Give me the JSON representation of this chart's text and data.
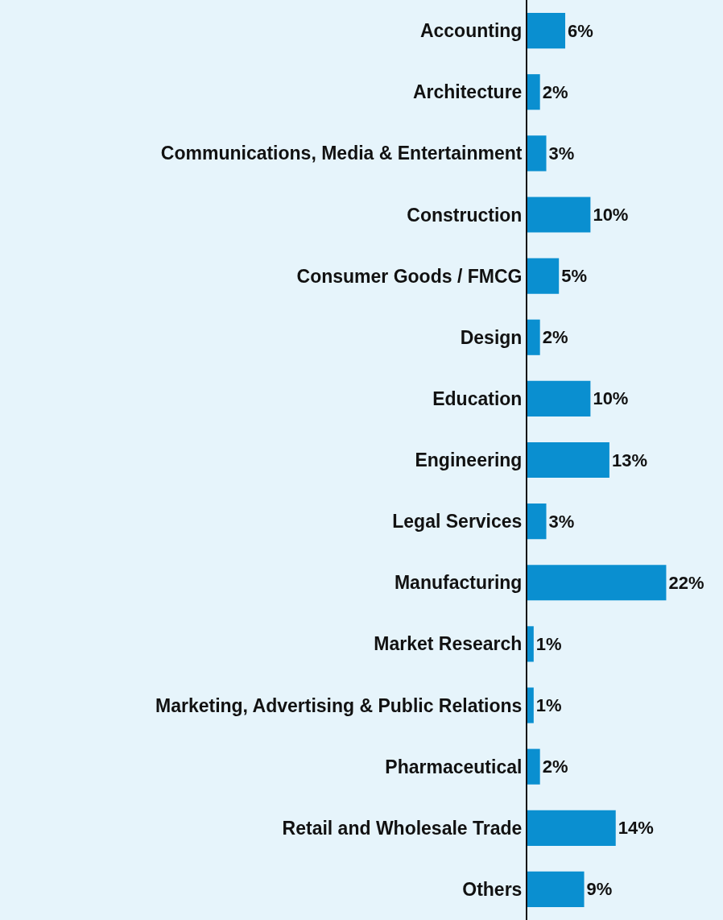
{
  "chart_data": {
    "type": "bar",
    "orientation": "horizontal",
    "categories": [
      "Accounting",
      "Architecture",
      "Communications, Media & Entertainment",
      "Construction",
      "Consumer Goods / FMCG",
      "Design",
      "Education",
      "Engineering",
      "Legal Services",
      "Manufacturing",
      "Market Research",
      "Marketing, Advertising & Public Relations",
      "Pharmaceutical",
      "Retail and Wholesale Trade",
      "Others"
    ],
    "values": [
      6,
      2,
      3,
      10,
      5,
      2,
      10,
      13,
      3,
      22,
      1,
      1,
      2,
      14,
      9
    ],
    "value_labels": [
      "6%",
      "2%",
      "3%",
      "10%",
      "5%",
      "2%",
      "10%",
      "13%",
      "3%",
      "22%",
      "1%",
      "1%",
      "2%",
      "14%",
      "9%"
    ],
    "color": "#0a8fd0",
    "xlim": [
      0,
      31
    ],
    "grid": false,
    "legend": false,
    "tick_labels": "y"
  }
}
